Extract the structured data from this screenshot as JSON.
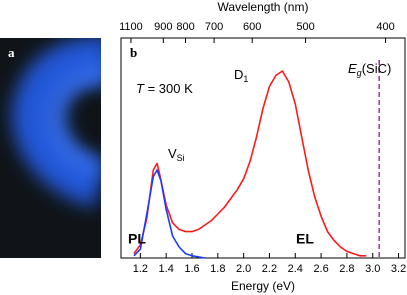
{
  "chart_data": {
    "type": "line",
    "panel_labels": [
      "a",
      "b"
    ],
    "xlabel": "Energy (eV)",
    "x2label": "Wavelength (nm)",
    "xlim": [
      1.05,
      3.25
    ],
    "xticks": [
      1.2,
      1.4,
      1.6,
      1.8,
      {
        "value": 2,
        "label": "2.0"
      },
      2.2,
      2.4,
      2.6,
      2.8,
      {
        "value": 3,
        "label": "3.0"
      },
      3.2
    ],
    "x2lim": [
      1180.8,
      381.5
    ],
    "x2scale": "reciprocal",
    "x2ticks": [
      1100,
      900,
      800,
      700,
      600,
      500,
      400
    ],
    "ylim": [
      0,
      1
    ],
    "eg_line": {
      "x": 3.05,
      "color": "#9b2f9b"
    },
    "series": [
      {
        "name": "EL",
        "color": "#ff1a1a",
        "x": [
          1.15,
          1.2,
          1.25,
          1.3,
          1.33,
          1.35,
          1.4,
          1.45,
          1.5,
          1.55,
          1.6,
          1.65,
          1.7,
          1.75,
          1.8,
          1.85,
          1.9,
          1.95,
          2.0,
          2.05,
          2.1,
          2.15,
          2.2,
          2.25,
          2.3,
          2.35,
          2.4,
          2.45,
          2.5,
          2.55,
          2.6,
          2.65,
          2.7,
          2.75,
          2.8,
          2.85,
          2.9,
          2.95
        ],
        "values": [
          0.02,
          0.06,
          0.18,
          0.4,
          0.43,
          0.38,
          0.24,
          0.16,
          0.13,
          0.12,
          0.12,
          0.13,
          0.15,
          0.17,
          0.2,
          0.23,
          0.27,
          0.31,
          0.36,
          0.44,
          0.55,
          0.68,
          0.78,
          0.83,
          0.85,
          0.8,
          0.7,
          0.55,
          0.4,
          0.28,
          0.19,
          0.12,
          0.08,
          0.05,
          0.03,
          0.02,
          0.01,
          0.01
        ]
      },
      {
        "name": "PL",
        "color": "#1a3cff",
        "x": [
          1.15,
          1.2,
          1.25,
          1.3,
          1.33,
          1.36,
          1.4,
          1.45,
          1.5,
          1.55,
          1.6,
          1.7
        ],
        "values": [
          0.01,
          0.04,
          0.2,
          0.37,
          0.4,
          0.35,
          0.22,
          0.1,
          0.05,
          0.02,
          0.01,
          0
        ]
      }
    ],
    "annotations": [
      {
        "parts": [
          {
            "text": "T",
            "italic": true
          },
          {
            "text": " = 300 K"
          }
        ]
      },
      {
        "parts": [
          {
            "text": "D"
          },
          {
            "text": "1",
            "sub": true
          }
        ]
      },
      {
        "parts": [
          {
            "text": "V"
          },
          {
            "text": "Si",
            "sub": true
          }
        ]
      },
      {
        "parts": [
          {
            "text": "E",
            "italic": true
          },
          {
            "text": "g",
            "sub": true,
            "italic": true
          },
          {
            "text": "(SiC)"
          }
        ],
        "color": "#9b2f9b"
      }
    ]
  }
}
